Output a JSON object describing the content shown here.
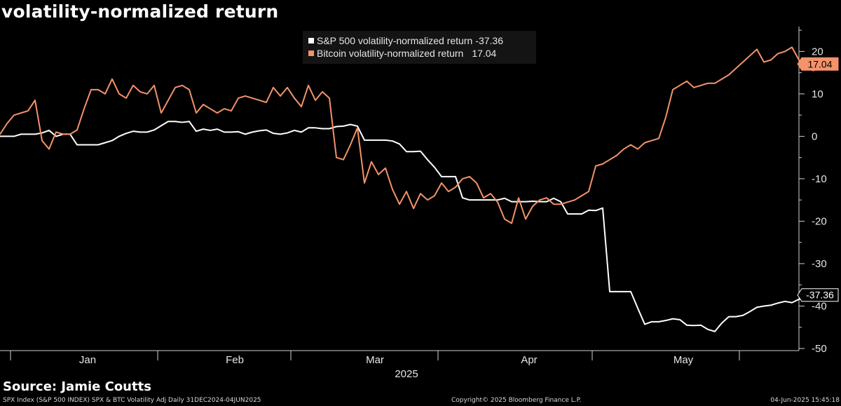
{
  "title": "volatility-normalized return",
  "source": "Source: Jamie Coutts",
  "footer": {
    "left": "SPX Index (S&P 500 INDEX) SPX & BTC Volatility Adj  Daily 31DEC2024-04JUN2025",
    "center": "Copyright© 2025 Bloomberg Finance L.P.",
    "right": "04-Jun-2025 15:45:18"
  },
  "legend": [
    {
      "label": "S&P 500 volatility-normalized return",
      "value": "-37.36",
      "color": "#ffffff"
    },
    {
      "label": "Bitcoin volatility-normalized return",
      "value": "17.04",
      "color": "#f4926a"
    }
  ],
  "chart_data": {
    "type": "line",
    "x_unit": "trading day index (0 = 31-Dec-2024)",
    "x_ticks": [
      {
        "label": "Jan",
        "x": 12.5
      },
      {
        "label": "Feb",
        "x": 33.5
      },
      {
        "label": "Mar",
        "x": 53.5
      },
      {
        "label": "Apr",
        "x": 75.5
      },
      {
        "label": "May",
        "x": 97.5
      }
    ],
    "x_group_label": "2025",
    "y_ticks": [
      20,
      10,
      0,
      -10,
      -20,
      -30,
      -40,
      -50
    ],
    "ylim": [
      -50.5,
      27.5
    ],
    "xlim": [
      0,
      112
    ],
    "grid": false,
    "series": [
      {
        "name": "S&P 500 volatility-normalized return",
        "color": "#ffffff",
        "last_value": "-37.36",
        "values": [
          0,
          0,
          0,
          0.5,
          0.5,
          0.5,
          0.8,
          1.4,
          0,
          0.5,
          0.5,
          -2,
          -2,
          -2,
          -2,
          -1.5,
          -1,
          0,
          0.7,
          1.2,
          1,
          1,
          1.5,
          2.5,
          3.5,
          3.5,
          3.3,
          3.5,
          1.2,
          1.7,
          1.4,
          1.7,
          1,
          1,
          1.1,
          0.5,
          1,
          1.3,
          1.5,
          0.7,
          0.5,
          0.8,
          1.4,
          1,
          2,
          2,
          1.8,
          1.8,
          2.3,
          2.4,
          2.8,
          2.4,
          -0.9,
          -0.9,
          -0.9,
          -0.9,
          -1.1,
          -1.8,
          -3.6,
          -3.6,
          -3.5,
          -5.5,
          -7.3,
          -9.5,
          -9.5,
          -9.5,
          -14.5,
          -15,
          -15,
          -15,
          -15,
          -15,
          -14.6,
          -15.4,
          -15.4,
          -15.4,
          -15.3,
          -15.4,
          -15.4,
          -14.6,
          -15.4,
          -18.3,
          -18.3,
          -18.3,
          -17.4,
          -17.5,
          -16.9,
          -36.6,
          -36.6,
          -36.6,
          -36.6,
          -40.5,
          -44.3,
          -43.7,
          -43.7,
          -43.4,
          -43,
          -43.2,
          -44.5,
          -44.6,
          -44.5,
          -45.5,
          -46,
          -44,
          -42.5,
          -42.5,
          -42.2,
          -41.3,
          -40.3,
          -40,
          -39.8,
          -39.3,
          -38.9,
          -39.2,
          -38.4,
          -38.2,
          -37.7,
          -37.4
        ]
      },
      {
        "name": "Bitcoin volatility-normalized return",
        "color": "#f4926a",
        "last_value": "17.04",
        "values": [
          0.5,
          3,
          5,
          5.5,
          6,
          8.5,
          -1,
          -3,
          1,
          0.5,
          0.5,
          1.5,
          6.5,
          11,
          11,
          10,
          13.5,
          10,
          9,
          12,
          10.5,
          10,
          12,
          5.5,
          8.5,
          11.5,
          12,
          11,
          5.5,
          7.5,
          6.5,
          5.5,
          6.5,
          6,
          9,
          9.5,
          9,
          8.5,
          8,
          11.5,
          9.5,
          11.5,
          9,
          7,
          12,
          8.5,
          10.5,
          9,
          -5,
          -5.5,
          -2,
          2,
          -11,
          -6,
          -9,
          -7.5,
          -12.5,
          -16,
          -13,
          -17,
          -13.5,
          -15,
          -14,
          -11,
          -13,
          -12,
          -10,
          -9.5,
          -11,
          -14.5,
          -13.5,
          -15.5,
          -19.5,
          -20.5,
          -14.5,
          -19.5,
          -16.5,
          -15,
          -14.5,
          -16,
          -16,
          -15.5,
          -15,
          -14,
          -13,
          -7,
          -6.5,
          -5.5,
          -4.5,
          -3,
          -2,
          -3,
          -1.5,
          -1,
          -0.5,
          4.5,
          11,
          12,
          13,
          11.5,
          12,
          12.5,
          12.5,
          13.5,
          14.5,
          16,
          17.5,
          19,
          20.5,
          17.5,
          18,
          19.5,
          20,
          21,
          18,
          17,
          15.5,
          16,
          17,
          17.04
        ]
      }
    ]
  }
}
